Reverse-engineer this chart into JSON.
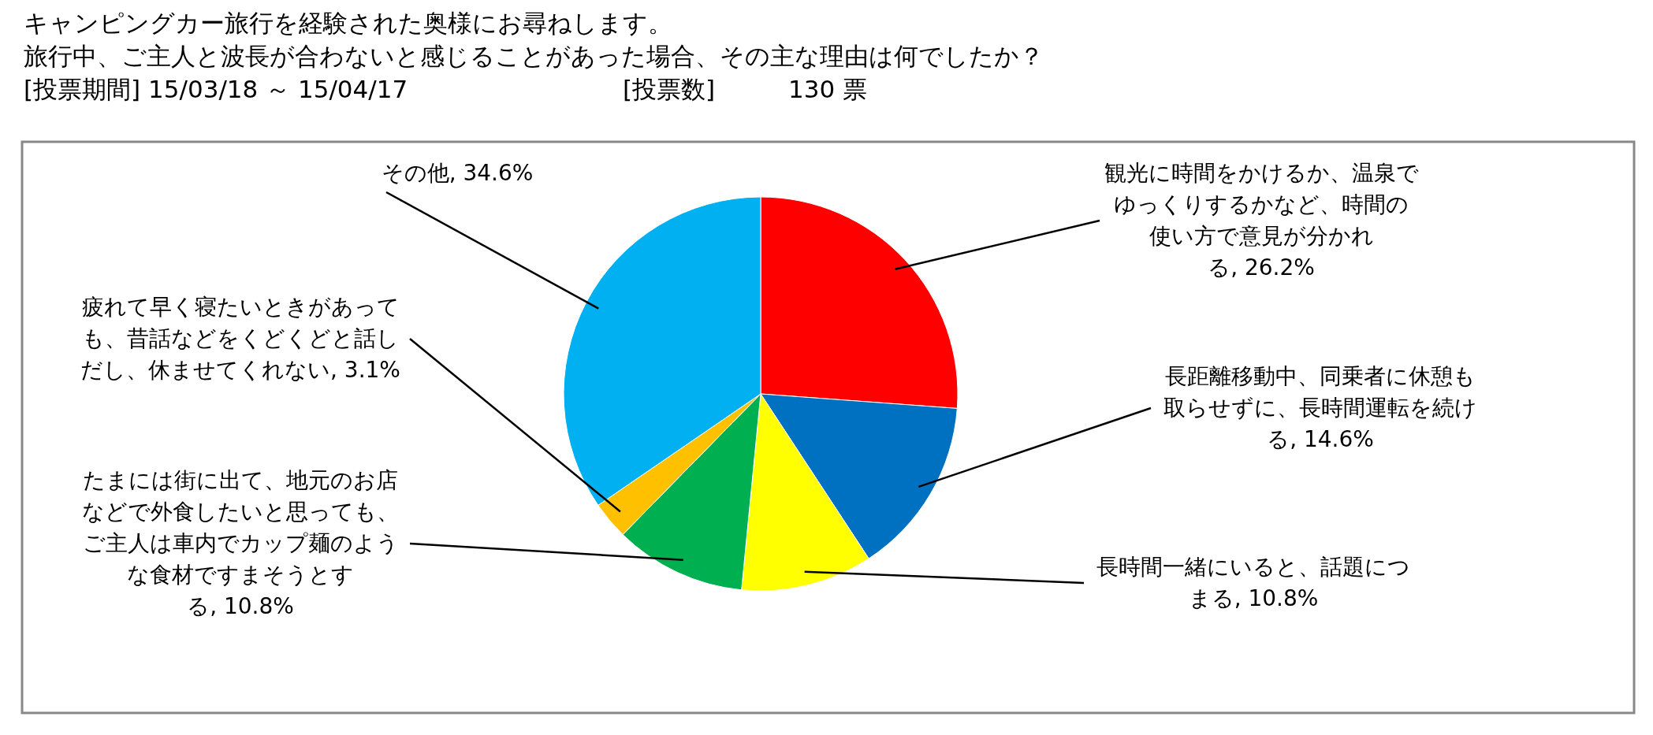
{
  "chart_data": {
    "type": "pie",
    "title": "キャンピングカー旅行を経験された奥様にお尋ねします。",
    "subtitle": "旅行中、ご主人と波長が合わないと感じることがあった場合、その主な理由は何でしたか？",
    "annotations": [
      "[投票期間] 15/03/18 ～ 15/04/17",
      "[投票数]",
      "130 票"
    ],
    "categories": [
      "観光に時間をかけるか、温泉でゆっくりするかなど、時間の使い方で意見が分かれる",
      "長距離移動中、同乗者に休憩も取らせずに、長時間運転を続ける",
      "長時間一緒にいると、話題につまる",
      "たまには街に出て、地元のお店などで外食したいと思っても、ご主人は車内でカップ麺のような食材ですまそうとする",
      "疲れて早く寝たいときがあっても、昔話などをくどくどと話しだし、休ませてくれない",
      "その他"
    ],
    "values": [
      26.2,
      14.6,
      10.8,
      10.8,
      3.1,
      34.6
    ],
    "value_labels": [
      "26.2%",
      "14.6%",
      "10.8%",
      "10.8%",
      "3.1%",
      "34.6%"
    ],
    "colors": [
      "#ff0000",
      "#0070c0",
      "#ffff00",
      "#00b050",
      "#ffc000",
      "#00b0f0"
    ]
  }
}
